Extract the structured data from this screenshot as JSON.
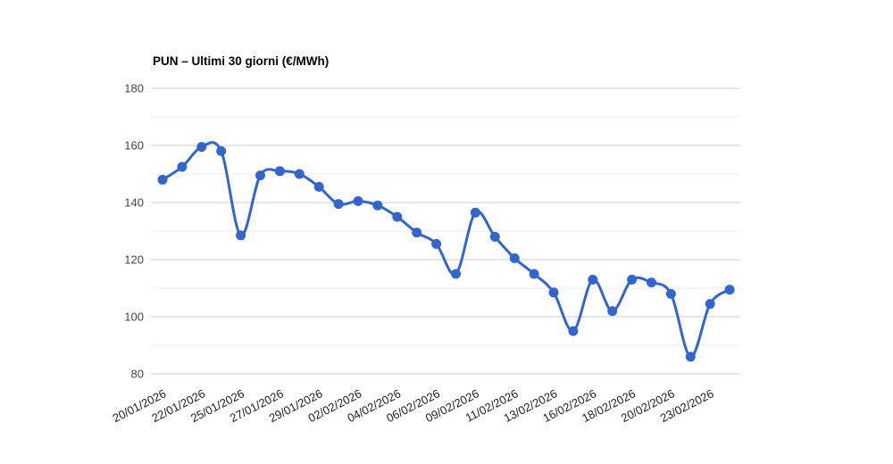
{
  "chart_data": {
    "type": "line",
    "title": "PUN – Ultimi 30 giorni (€/MWh)",
    "xlabel": "",
    "ylabel": "",
    "unit": "€/MWh",
    "legend": "none",
    "grid": "horizontal-only",
    "smooth": true,
    "marker": "circle",
    "ylim": [
      80,
      180
    ],
    "y_major_ticks": [
      180,
      160,
      140,
      120,
      100,
      80
    ],
    "y_minor_gridlines": [
      170,
      150,
      130,
      110,
      90
    ],
    "x_tick_labels": [
      "20/01/2026",
      "22/01/2026",
      "25/01/2026",
      "27/01/2026",
      "29/01/2026",
      "02/02/2026",
      "04/02/2026",
      "06/02/2026",
      "09/02/2026",
      "11/02/2026",
      "13/02/2026",
      "16/02/2026",
      "18/02/2026",
      "20/02/2026",
      "23/02/2026"
    ],
    "x_tick_point_step": 2,
    "values": [
      148,
      152.5,
      159.5,
      158,
      128.5,
      149.5,
      151,
      150,
      145.5,
      139.5,
      140.5,
      139,
      135,
      129.5,
      125.5,
      115,
      136.5,
      128,
      120.5,
      115,
      108.5,
      95,
      113,
      102,
      113,
      112,
      108,
      86,
      104.5,
      109.5
    ],
    "colors": {
      "line": "#3366cc",
      "marker": "#3366cc",
      "grid_major": "#cccccc",
      "grid_minor": "#ebebeb",
      "y_label": "#444444",
      "x_label": "#222222",
      "title": "#000000",
      "background": "#ffffff"
    }
  }
}
